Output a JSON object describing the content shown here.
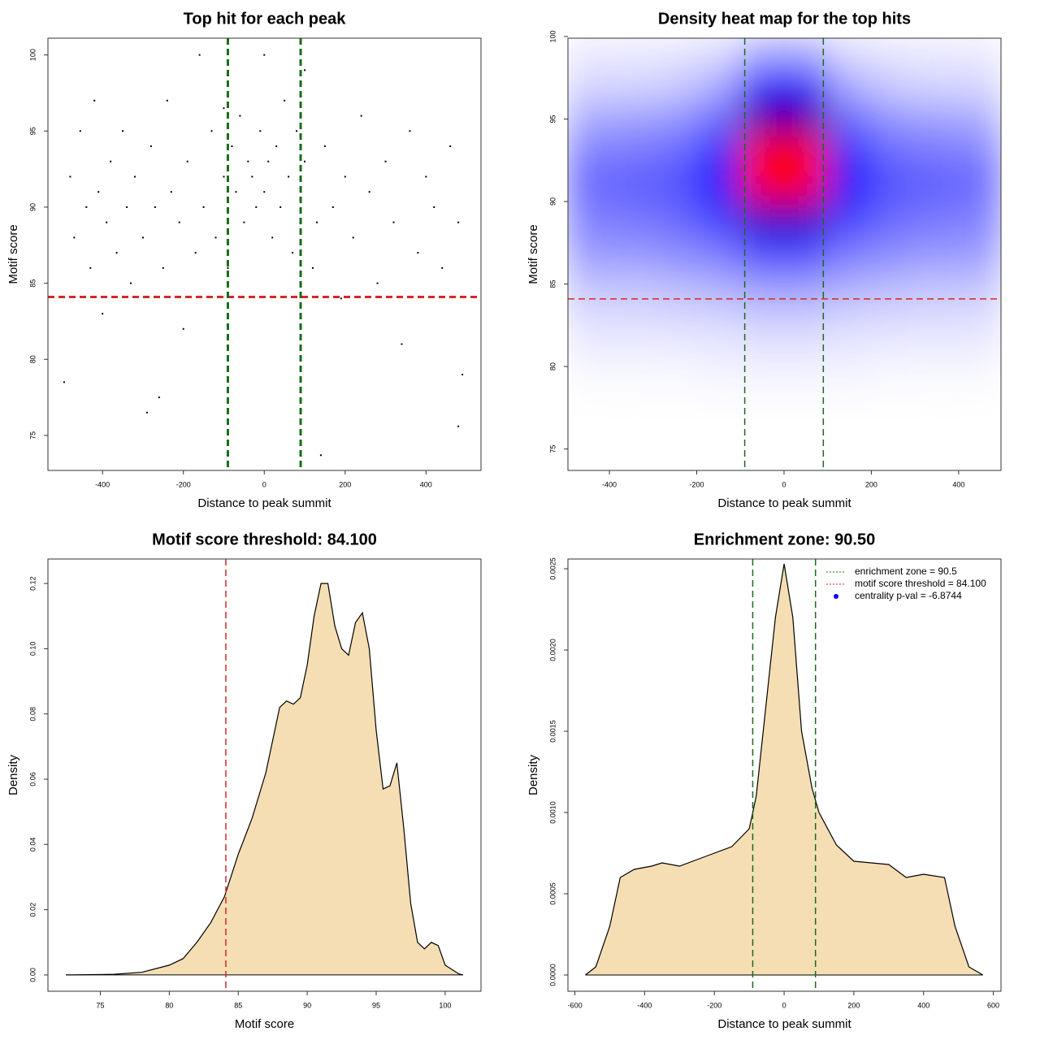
{
  "chart_data": [
    {
      "type": "scatter",
      "title": "Top hit for each peak",
      "x_label": "Distance to peak summit",
      "y_label": "Motif score",
      "xlim": [
        -535,
        536
      ],
      "ylim": [
        72.7,
        101.1
      ],
      "xticks": [
        -400,
        -200,
        0,
        200,
        400
      ],
      "yticks": [
        75,
        80,
        85,
        90,
        95,
        100
      ],
      "color": "#000000",
      "x": [
        -480,
        -470,
        -455,
        -440,
        -430,
        -420,
        -410,
        -400,
        -390,
        -380,
        -365,
        -350,
        -340,
        -330,
        -320,
        -300,
        -290,
        -280,
        -270,
        -250,
        -240,
        -230,
        -210,
        -200,
        -190,
        -170,
        -160,
        -150,
        -130,
        -120,
        -100,
        -90,
        -80,
        -70,
        -60,
        -50,
        -40,
        -30,
        -20,
        -10,
        0,
        10,
        20,
        30,
        40,
        50,
        60,
        70,
        80,
        90,
        100,
        120,
        130,
        150,
        170,
        190,
        200,
        220,
        240,
        260,
        280,
        300,
        320,
        340,
        360,
        380,
        400,
        420,
        440,
        460,
        480,
        490,
        -495,
        140,
        480,
        -260,
        100,
        -100,
        0
      ],
      "y": [
        92,
        88,
        95,
        90,
        86,
        97,
        91,
        83,
        89,
        93,
        87,
        95,
        90,
        85,
        92,
        88,
        76.5,
        94,
        90,
        86,
        97,
        91,
        89,
        82,
        93,
        87,
        100,
        90,
        95,
        88,
        92,
        86,
        94,
        91,
        96,
        89,
        93,
        92,
        90,
        95,
        91,
        93,
        88,
        94,
        90,
        97,
        92,
        87,
        95,
        91,
        93,
        86,
        89,
        94,
        90,
        84,
        92,
        88,
        96,
        91,
        85,
        93,
        89,
        81,
        95,
        87,
        92,
        90,
        86,
        94,
        89,
        79,
        78.5,
        73.7,
        75.6,
        77.5,
        99,
        96.5,
        100
      ],
      "hlines": [
        {
          "value": 84.1,
          "color": "#d62728"
        }
      ],
      "vlines": [
        {
          "value": -90,
          "color": "#1a6b1a"
        },
        {
          "value": 90,
          "color": "#1a6b1a"
        }
      ]
    },
    {
      "type": "heatmap",
      "title": "Density heat map for the top hits",
      "x_label": "Distance to peak summit",
      "y_label": "Motif score",
      "xlim": [
        -495,
        497
      ],
      "ylim": [
        73.7,
        99.9
      ],
      "xticks": [
        -400,
        -200,
        0,
        200,
        400
      ],
      "yticks": [
        75,
        80,
        85,
        90,
        95,
        100
      ],
      "colors": [
        "#ffffff",
        "#0000ff",
        "#ff0000"
      ],
      "x": [
        -450,
        -350,
        -250,
        -150,
        -50,
        50,
        150,
        250,
        350,
        450
      ],
      "y": [
        99,
        97,
        95,
        93,
        91,
        89,
        87,
        85,
        83,
        81,
        79
      ],
      "z": [
        [
          0.05,
          0.05,
          0.06,
          0.08,
          0.2,
          0.2,
          0.08,
          0.06,
          0.05,
          0.05
        ],
        [
          0.1,
          0.1,
          0.12,
          0.2,
          0.6,
          0.6,
          0.2,
          0.12,
          0.1,
          0.1
        ],
        [
          0.2,
          0.22,
          0.25,
          0.35,
          0.75,
          0.75,
          0.35,
          0.25,
          0.22,
          0.2
        ],
        [
          0.3,
          0.32,
          0.35,
          0.5,
          1.0,
          1.0,
          0.5,
          0.35,
          0.32,
          0.3
        ],
        [
          0.35,
          0.37,
          0.4,
          0.55,
          1.0,
          1.0,
          0.55,
          0.4,
          0.37,
          0.35
        ],
        [
          0.3,
          0.32,
          0.35,
          0.45,
          0.7,
          0.7,
          0.45,
          0.35,
          0.32,
          0.3
        ],
        [
          0.25,
          0.25,
          0.28,
          0.32,
          0.45,
          0.45,
          0.32,
          0.28,
          0.25,
          0.25
        ],
        [
          0.15,
          0.15,
          0.17,
          0.2,
          0.25,
          0.25,
          0.2,
          0.17,
          0.15,
          0.15
        ],
        [
          0.08,
          0.08,
          0.09,
          0.1,
          0.12,
          0.12,
          0.1,
          0.09,
          0.08,
          0.08
        ],
        [
          0.04,
          0.04,
          0.04,
          0.05,
          0.06,
          0.06,
          0.05,
          0.04,
          0.04,
          0.04
        ],
        [
          0.01,
          0.01,
          0.01,
          0.02,
          0.02,
          0.02,
          0.02,
          0.01,
          0.01,
          0.01
        ]
      ],
      "hlines": [
        {
          "value": 84.1,
          "color": "#d62728"
        }
      ],
      "vlines": [
        {
          "value": -90,
          "color": "#1a6b1a"
        },
        {
          "value": 90,
          "color": "#1a6b1a"
        }
      ]
    },
    {
      "type": "density",
      "title": "Motif score threshold: 84.100",
      "x_label": "Motif score",
      "y_label": "Density",
      "xlim": [
        71.2,
        102.6
      ],
      "ylim": [
        -0.005,
        0.1275
      ],
      "xticks": [
        75,
        80,
        85,
        90,
        95,
        100
      ],
      "yticks": [
        {
          "value": 0,
          "label": "0.00"
        },
        {
          "value": 0.02,
          "label": "0.02"
        },
        {
          "value": 0.04,
          "label": "0.04"
        },
        {
          "value": 0.06,
          "label": "0.06"
        },
        {
          "value": 0.08,
          "label": "0.08"
        },
        {
          "value": 0.1,
          "label": "0.10"
        },
        {
          "value": 0.12,
          "label": "0.12"
        }
      ],
      "fill": "#f5deb3",
      "x": [
        72.5,
        76,
        78,
        80,
        81,
        82,
        83,
        84,
        85,
        86,
        87,
        88,
        88.5,
        89,
        89.5,
        90,
        90.5,
        91,
        91.5,
        92,
        92.5,
        93,
        93.5,
        94,
        94.5,
        95,
        95.5,
        96,
        96.5,
        97,
        97.5,
        98,
        98.5,
        99,
        99.5,
        100,
        101,
        101.3
      ],
      "y": [
        0,
        0.0002,
        0.0008,
        0.003,
        0.005,
        0.01,
        0.016,
        0.024,
        0.037,
        0.048,
        0.062,
        0.082,
        0.084,
        0.083,
        0.085,
        0.095,
        0.11,
        0.12,
        0.12,
        0.107,
        0.1,
        0.098,
        0.108,
        0.111,
        0.1,
        0.075,
        0.057,
        0.058,
        0.065,
        0.045,
        0.022,
        0.01,
        0.008,
        0.01,
        0.009,
        0.003,
        0.0003,
        0
      ],
      "vlines": [
        {
          "value": 84.1,
          "color": "#d62728"
        }
      ]
    },
    {
      "type": "density",
      "title": "Enrichment zone: 90.50",
      "x_label": "Distance to peak summit",
      "y_label": "Density",
      "xlim": [
        -620,
        622
      ],
      "ylim": [
        -0.0001,
        0.00256
      ],
      "xticks": [
        -600,
        -400,
        -200,
        0,
        200,
        400,
        600
      ],
      "yticks": [
        {
          "value": 0,
          "label": "0.0000"
        },
        {
          "value": 0.0005,
          "label": "0.0005"
        },
        {
          "value": 0.001,
          "label": "0.0010"
        },
        {
          "value": 0.0015,
          "label": "0.0015"
        },
        {
          "value": 0.002,
          "label": "0.0020"
        },
        {
          "value": 0.0025,
          "label": "0.0025"
        }
      ],
      "fill": "#f5deb3",
      "x": [
        -570,
        -540,
        -500,
        -470,
        -430,
        -380,
        -350,
        -300,
        -250,
        -200,
        -150,
        -100,
        -80,
        -50,
        -25,
        0,
        25,
        50,
        80,
        100,
        150,
        200,
        250,
        300,
        350,
        400,
        460,
        490,
        530,
        570
      ],
      "y": [
        0,
        5e-05,
        0.0003,
        0.0006,
        0.00065,
        0.00067,
        0.00069,
        0.00067,
        0.00071,
        0.00075,
        0.00079,
        0.0009,
        0.0011,
        0.0017,
        0.0022,
        0.00253,
        0.0022,
        0.0015,
        0.00115,
        0.001,
        0.0008,
        0.0007,
        0.00069,
        0.00068,
        0.0006,
        0.00062,
        0.0006,
        0.0003,
        5e-05,
        0
      ],
      "vlines": [
        {
          "value": -90,
          "color": "#1a6b1a"
        },
        {
          "value": 90,
          "color": "#1a6b1a"
        }
      ],
      "legend": [
        {
          "label": "enrichment zone = 90.5",
          "color": "#1a6b1a",
          "style": "line"
        },
        {
          "label": "motif score threshold = 84.100",
          "color": "#d62728",
          "style": "line"
        },
        {
          "label": "centrality p-val = -6.8744",
          "color": "#0000ff",
          "style": "point"
        }
      ]
    }
  ]
}
